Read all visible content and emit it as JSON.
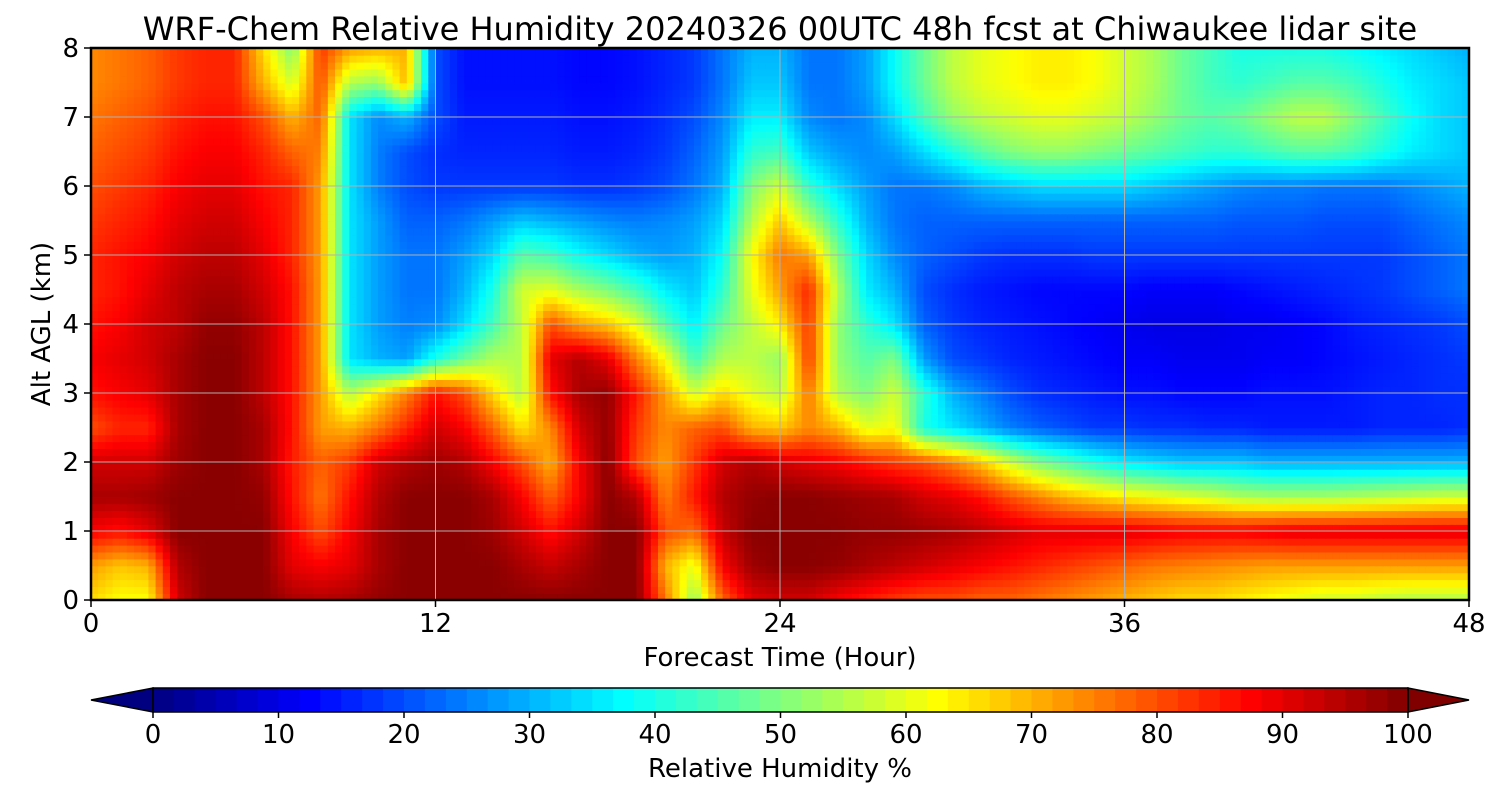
{
  "chart_data": {
    "type": "heatmap",
    "subtype": "filled-contour",
    "title": "WRF-Chem Relative Humidity 20240326 00UTC 48h fcst at Chiwaukee lidar site",
    "xlabel": "Forecast Time (Hour)",
    "ylabel": "Alt AGL (km)",
    "xlim": [
      0,
      48
    ],
    "ylim": [
      0,
      8
    ],
    "xticks": [
      "0",
      "12",
      "24",
      "36",
      "48"
    ],
    "yticks": [
      "0",
      "1",
      "2",
      "3",
      "4",
      "5",
      "6",
      "7",
      "8"
    ],
    "grid": true,
    "colormap": "jet",
    "value_range": [
      0,
      100
    ],
    "colorbar": {
      "label": "Relative Humidity %",
      "ticks": [
        "0",
        "10",
        "20",
        "30",
        "40",
        "50",
        "60",
        "70",
        "80",
        "90",
        "100"
      ],
      "orientation": "horizontal",
      "extend": "both"
    },
    "x": [
      0,
      1,
      2,
      3,
      4,
      5,
      6,
      7,
      8,
      9,
      10,
      11,
      12,
      13,
      14,
      15,
      16,
      17,
      18,
      19,
      20,
      21,
      22,
      23,
      24,
      25,
      26,
      27,
      28,
      29,
      30,
      31,
      32,
      33,
      34,
      35,
      36,
      37,
      38,
      39,
      40,
      41,
      42,
      43,
      44,
      45,
      46,
      47,
      48
    ],
    "y": [
      0,
      0.5,
      1,
      1.5,
      2,
      2.5,
      3,
      3.5,
      4,
      4.5,
      5,
      5.5,
      6,
      6.5,
      7,
      7.5,
      8
    ],
    "z": [
      [
        66,
        62,
        62,
        92,
        99,
        99,
        99,
        96,
        95,
        96,
        98,
        99,
        99,
        99,
        99,
        99,
        99,
        99,
        99,
        99,
        76,
        52,
        78,
        90,
        92,
        92,
        88,
        85,
        82,
        80,
        80,
        78,
        78,
        76,
        74,
        72,
        70,
        68,
        66,
        66,
        64,
        62,
        60,
        58,
        58,
        56,
        55,
        55,
        55
      ],
      [
        72,
        68,
        70,
        95,
        99,
        99,
        99,
        90,
        88,
        90,
        96,
        99,
        99,
        99,
        99,
        96,
        93,
        96,
        99,
        99,
        70,
        60,
        88,
        97,
        99,
        99,
        98,
        96,
        94,
        92,
        90,
        88,
        86,
        84,
        82,
        80,
        78,
        76,
        75,
        74,
        73,
        72,
        72,
        72,
        72,
        72,
        72,
        72,
        72
      ],
      [
        88,
        86,
        90,
        99,
        99,
        99,
        99,
        88,
        80,
        88,
        96,
        99,
        99,
        99,
        97,
        92,
        86,
        92,
        99,
        99,
        80,
        77,
        93,
        99,
        99,
        99,
        99,
        98,
        98,
        97,
        96,
        94,
        92,
        90,
        90,
        90,
        90,
        89,
        88,
        88,
        88,
        89,
        90,
        90,
        90,
        90,
        90,
        90,
        90
      ],
      [
        96,
        96,
        97,
        99,
        99,
        99,
        98,
        86,
        76,
        86,
        95,
        99,
        99,
        99,
        96,
        88,
        78,
        88,
        99,
        95,
        75,
        85,
        95,
        98,
        99,
        99,
        98,
        97,
        96,
        92,
        90,
        86,
        80,
        75,
        70,
        67,
        64,
        62,
        60,
        58,
        55,
        54,
        54,
        54,
        55,
        56,
        57,
        58,
        58
      ],
      [
        92,
        92,
        92,
        97,
        99,
        99,
        96,
        85,
        78,
        82,
        92,
        95,
        97,
        95,
        88,
        80,
        70,
        88,
        99,
        80,
        72,
        82,
        92,
        95,
        92,
        90,
        88,
        85,
        82,
        80,
        75,
        68,
        58,
        50,
        45,
        40,
        36,
        34,
        32,
        32,
        32,
        30,
        30,
        30,
        30,
        30,
        30,
        30,
        30
      ],
      [
        80,
        84,
        84,
        96,
        99,
        99,
        96,
        86,
        72,
        70,
        76,
        84,
        92,
        88,
        78,
        65,
        74,
        92,
        98,
        82,
        74,
        78,
        80,
        70,
        68,
        74,
        70,
        60,
        62,
        40,
        35,
        30,
        25,
        22,
        20,
        18,
        18,
        17,
        17,
        16,
        16,
        15,
        15,
        15,
        15,
        16,
        16,
        16,
        17
      ],
      [
        86,
        88,
        90,
        96,
        99,
        99,
        94,
        86,
        72,
        55,
        65,
        75,
        86,
        80,
        66,
        55,
        86,
        96,
        98,
        85,
        72,
        58,
        66,
        60,
        56,
        76,
        55,
        50,
        58,
        42,
        30,
        25,
        20,
        17,
        16,
        15,
        14,
        14,
        13,
        13,
        13,
        14,
        14,
        14,
        15,
        16,
        16,
        17,
        17
      ],
      [
        88,
        90,
        92,
        96,
        99,
        99,
        94,
        86,
        72,
        35,
        30,
        28,
        40,
        48,
        55,
        55,
        90,
        95,
        90,
        75,
        62,
        44,
        55,
        56,
        52,
        82,
        52,
        46,
        50,
        28,
        20,
        18,
        16,
        15,
        14,
        13,
        12,
        12,
        11,
        11,
        11,
        12,
        12,
        13,
        14,
        15,
        16,
        17,
        18
      ],
      [
        86,
        88,
        92,
        94,
        98,
        98,
        94,
        86,
        72,
        35,
        28,
        25,
        26,
        34,
        44,
        56,
        80,
        72,
        68,
        60,
        46,
        36,
        48,
        56,
        64,
        82,
        52,
        42,
        35,
        22,
        18,
        16,
        15,
        14,
        13,
        12,
        11,
        10,
        10,
        10,
        11,
        11,
        12,
        13,
        15,
        16,
        17,
        18,
        20
      ],
      [
        84,
        86,
        90,
        94,
        96,
        96,
        92,
        86,
        72,
        35,
        28,
        24,
        24,
        30,
        40,
        58,
        60,
        54,
        50,
        44,
        36,
        32,
        42,
        60,
        72,
        84,
        55,
        36,
        30,
        20,
        17,
        15,
        14,
        13,
        13,
        13,
        13,
        12,
        12,
        12,
        13,
        14,
        15,
        16,
        17,
        18,
        20,
        22,
        24
      ],
      [
        84,
        86,
        88,
        92,
        94,
        94,
        90,
        84,
        72,
        35,
        28,
        24,
        24,
        28,
        34,
        46,
        44,
        38,
        34,
        30,
        28,
        30,
        38,
        62,
        76,
        72,
        50,
        34,
        26,
        22,
        20,
        18,
        17,
        17,
        17,
        18,
        18,
        18,
        18,
        18,
        18,
        18,
        18,
        18,
        18,
        18,
        20,
        22,
        24
      ],
      [
        82,
        84,
        86,
        90,
        92,
        92,
        88,
        84,
        72,
        35,
        28,
        22,
        22,
        24,
        28,
        32,
        30,
        28,
        26,
        25,
        26,
        28,
        34,
        55,
        68,
        55,
        42,
        30,
        24,
        22,
        22,
        22,
        22,
        22,
        22,
        22,
        22,
        22,
        22,
        22,
        21,
        21,
        21,
        20,
        20,
        20,
        22,
        24,
        26
      ],
      [
        80,
        82,
        84,
        88,
        90,
        90,
        86,
        84,
        72,
        35,
        25,
        20,
        18,
        18,
        18,
        18,
        18,
        17,
        17,
        18,
        20,
        24,
        30,
        50,
        58,
        42,
        34,
        28,
        24,
        24,
        26,
        30,
        32,
        34,
        34,
        34,
        34,
        32,
        30,
        28,
        26,
        25,
        25,
        24,
        24,
        24,
        26,
        28,
        30
      ],
      [
        78,
        80,
        82,
        86,
        88,
        88,
        84,
        78,
        75,
        35,
        25,
        20,
        17,
        16,
        16,
        16,
        16,
        15,
        15,
        16,
        18,
        22,
        28,
        42,
        44,
        32,
        28,
        26,
        28,
        34,
        40,
        46,
        50,
        52,
        52,
        50,
        48,
        46,
        44,
        42,
        42,
        44,
        46,
        46,
        44,
        40,
        36,
        34,
        32
      ],
      [
        76,
        78,
        80,
        84,
        86,
        86,
        80,
        70,
        78,
        35,
        26,
        30,
        20,
        15,
        15,
        15,
        15,
        14,
        14,
        15,
        17,
        20,
        26,
        36,
        36,
        26,
        24,
        26,
        34,
        44,
        52,
        56,
        58,
        60,
        60,
        58,
        56,
        52,
        48,
        46,
        48,
        52,
        56,
        56,
        50,
        44,
        38,
        34,
        32
      ],
      [
        74,
        76,
        78,
        82,
        84,
        84,
        70,
        58,
        80,
        55,
        52,
        70,
        20,
        14,
        14,
        14,
        14,
        13,
        13,
        14,
        16,
        18,
        24,
        32,
        32,
        24,
        24,
        28,
        38,
        48,
        56,
        60,
        62,
        64,
        64,
        62,
        58,
        54,
        48,
        44,
        42,
        44,
        46,
        46,
        44,
        40,
        36,
        34,
        32
      ],
      [
        74,
        76,
        78,
        82,
        84,
        84,
        66,
        50,
        82,
        72,
        70,
        70,
        20,
        14,
        14,
        14,
        14,
        13,
        13,
        14,
        16,
        18,
        24,
        30,
        30,
        24,
        24,
        28,
        38,
        48,
        56,
        60,
        62,
        64,
        64,
        62,
        58,
        54,
        48,
        44,
        40,
        40,
        40,
        40,
        38,
        36,
        34,
        32,
        30
      ]
    ]
  }
}
